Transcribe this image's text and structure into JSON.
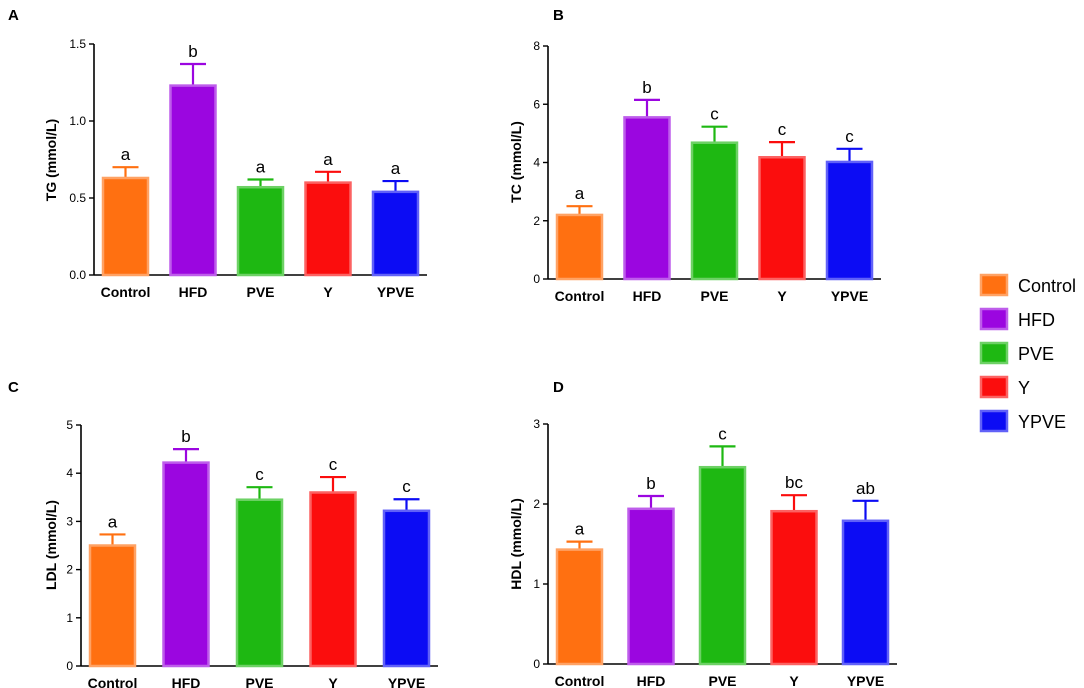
{
  "legend": [
    {
      "name": "Control",
      "color": "#ff7011"
    },
    {
      "name": "HFD",
      "color": "#9b06e0"
    },
    {
      "name": "PVE",
      "color": "#1eb812"
    },
    {
      "name": "Y",
      "color": "#fb0d0d"
    },
    {
      "name": "YPVE",
      "color": "#0c0cf4"
    }
  ],
  "chart_data": [
    {
      "panel": "A",
      "type": "bar",
      "ylabel": "TG (mmol/L)",
      "categories": [
        "Control",
        "HFD",
        "PVE",
        "Y",
        "YPVE"
      ],
      "values": [
        0.63,
        1.23,
        0.57,
        0.6,
        0.54
      ],
      "errors": [
        0.07,
        0.14,
        0.05,
        0.07,
        0.07
      ],
      "significance": [
        "a",
        "b",
        "a",
        "a",
        "a"
      ],
      "ylim": [
        0,
        1.5
      ],
      "yticks": [
        "0.0",
        "0.5",
        "1.0",
        "1.5"
      ]
    },
    {
      "panel": "B",
      "type": "bar",
      "ylabel": "TC (mmol/L)",
      "categories": [
        "Control",
        "HFD",
        "PVE",
        "Y",
        "YPVE"
      ],
      "values": [
        2.2,
        5.55,
        4.68,
        4.18,
        4.02
      ],
      "errors": [
        0.3,
        0.6,
        0.55,
        0.52,
        0.45
      ],
      "significance": [
        "a",
        "b",
        "c",
        "c",
        "c"
      ],
      "ylim": [
        0,
        8
      ],
      "yticks": [
        "0",
        "2",
        "4",
        "6",
        "8"
      ]
    },
    {
      "panel": "C",
      "type": "bar",
      "ylabel": "LDL (mmol/L)",
      "categories": [
        "Control",
        "HFD",
        "PVE",
        "Y",
        "YPVE"
      ],
      "values": [
        2.5,
        4.22,
        3.45,
        3.6,
        3.22
      ],
      "errors": [
        0.23,
        0.28,
        0.26,
        0.32,
        0.24
      ],
      "significance": [
        "a",
        "b",
        "c",
        "c",
        "c"
      ],
      "ylim": [
        0,
        5
      ],
      "yticks": [
        "0",
        "1",
        "2",
        "3",
        "4",
        "5"
      ]
    },
    {
      "panel": "D",
      "type": "bar",
      "ylabel": "HDL (mmol/L)",
      "categories": [
        "Control",
        "HFD",
        "PVE",
        "Y",
        "YPVE"
      ],
      "values": [
        1.43,
        1.94,
        2.46,
        1.91,
        1.79
      ],
      "errors": [
        0.1,
        0.16,
        0.26,
        0.2,
        0.25
      ],
      "significance": [
        "a",
        "b",
        "c",
        "bc",
        "ab"
      ],
      "ylim": [
        0,
        3
      ],
      "yticks": [
        "0",
        "1",
        "2",
        "3"
      ]
    }
  ]
}
